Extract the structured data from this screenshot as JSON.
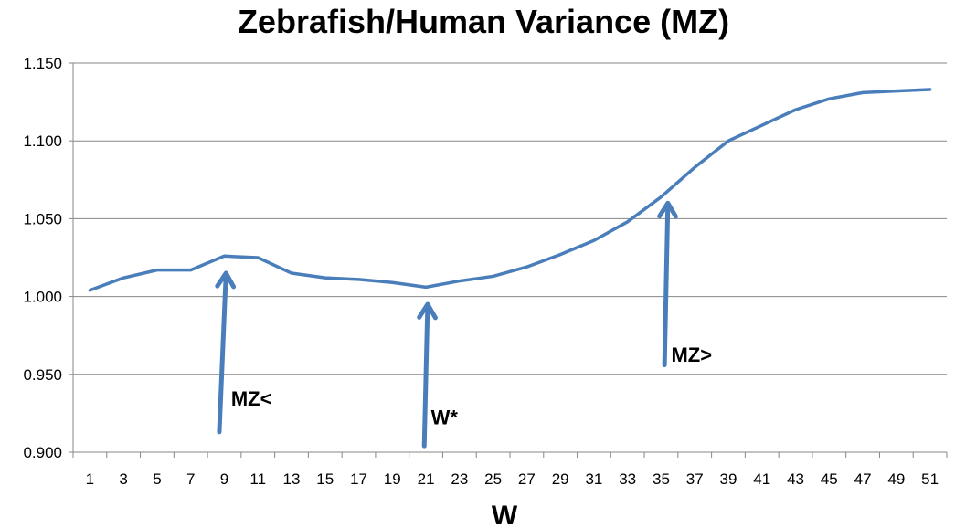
{
  "chart_data": {
    "type": "line",
    "title": "Zebrafish/Human Variance (MZ)",
    "xlabel": "W",
    "ylabel": "",
    "ylim": [
      0.9,
      1.15
    ],
    "yticks": [
      "0.900",
      "0.950",
      "1.000",
      "1.050",
      "1.100",
      "1.150"
    ],
    "xticks": [
      "1",
      "3",
      "5",
      "7",
      "9",
      "11",
      "13",
      "15",
      "17",
      "19",
      "21",
      "23",
      "25",
      "27",
      "29",
      "31",
      "33",
      "35",
      "37",
      "39",
      "41",
      "43",
      "45",
      "47",
      "49",
      "51"
    ],
    "grid": "horizontal",
    "legend": "none",
    "series": [
      {
        "color": "#4a7ebb",
        "x": [
          1,
          3,
          5,
          7,
          9,
          11,
          13,
          15,
          17,
          19,
          21,
          23,
          25,
          27,
          29,
          31,
          33,
          35,
          37,
          39,
          41,
          43,
          45,
          47,
          49,
          51
        ],
        "values": [
          1.004,
          1.012,
          1.017,
          1.017,
          1.026,
          1.025,
          1.015,
          1.012,
          1.011,
          1.009,
          1.006,
          1.01,
          1.013,
          1.019,
          1.027,
          1.036,
          1.048,
          1.064,
          1.083,
          1.1,
          1.11,
          1.12,
          1.127,
          1.131,
          1.132,
          1.133
        ]
      }
    ],
    "annotations": [
      {
        "text": "MZ<",
        "x_from": 8.7,
        "y_from": 0.913,
        "x_to": 9.1,
        "y_to": 1.015,
        "label_x": 9.4,
        "label_y": 0.93
      },
      {
        "text": "W*",
        "x_from": 20.9,
        "y_from": 0.904,
        "x_to": 21.1,
        "y_to": 0.995,
        "label_x": 21.3,
        "label_y": 0.918
      },
      {
        "text": "MZ>",
        "x_from": 35.2,
        "y_from": 0.956,
        "x_to": 35.4,
        "y_to": 1.06,
        "label_x": 35.6,
        "label_y": 0.958
      }
    ],
    "arrow_color": "#4a7ebb"
  }
}
